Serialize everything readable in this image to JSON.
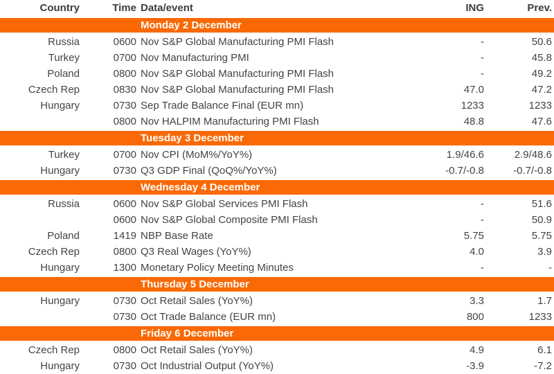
{
  "colors": {
    "accent_orange": "#FA6905",
    "banner_text": "#FFFFFF",
    "body_text": "#434343"
  },
  "table": {
    "columns": [
      "Country",
      "Time",
      "Data/event",
      "ING",
      "Prev."
    ],
    "sections": [
      {
        "day_header": "Monday 2 December",
        "rows": [
          {
            "country": "Russia",
            "time": "0600",
            "event": "Nov S&P Global Manufacturing PMI Flash",
            "ing": "-",
            "prev": "50.6"
          },
          {
            "country": "Turkey",
            "time": "0700",
            "event": "Nov Manufacturing PMI",
            "ing": "-",
            "prev": "45.8"
          },
          {
            "country": "Poland",
            "time": "0800",
            "event": "Nov S&P Global Manufacturing PMI Flash",
            "ing": "-",
            "prev": "49.2"
          },
          {
            "country": "Czech Rep",
            "time": "0830",
            "event": "Nov S&P Global Manufacturing PMI Flash",
            "ing": "47.0",
            "prev": "47.2"
          },
          {
            "country": "Hungary",
            "time": "0730",
            "event": "Sep Trade Balance Final (EUR mn)",
            "ing": "1233",
            "prev": "1233"
          },
          {
            "country": "",
            "time": "0800",
            "event": "Nov HALPIM Manufacturing PMI Flash",
            "ing": "48.8",
            "prev": "47.6"
          }
        ]
      },
      {
        "day_header": "Tuesday 3 December",
        "rows": [
          {
            "country": "Turkey",
            "time": "0700",
            "event": "Nov CPI (MoM%/YoY%)",
            "ing": "1.9/46.6",
            "prev": "2.9/48.6"
          },
          {
            "country": "Hungary",
            "time": "0730",
            "event": "Q3 GDP Final (QoQ%/YoY%)",
            "ing": "-0.7/-0.8",
            "prev": "-0.7/-0.8"
          }
        ]
      },
      {
        "day_header": "Wednesday 4 December",
        "rows": [
          {
            "country": "Russia",
            "time": "0600",
            "event": "Nov S&P Global Services PMI Flash",
            "ing": "-",
            "prev": "51.6"
          },
          {
            "country": "",
            "time": "0600",
            "event": "Nov S&P Global Composite PMI Flash",
            "ing": "-",
            "prev": "50.9"
          },
          {
            "country": "Poland",
            "time": "1419",
            "event": "NBP Base Rate",
            "ing": "5.75",
            "prev": "5.75"
          },
          {
            "country": "Czech Rep",
            "time": "0800",
            "event": "Q3 Real Wages (YoY%)",
            "ing": "4.0",
            "prev": "3.9"
          },
          {
            "country": "Hungary",
            "time": "1300",
            "event": "Monetary Policy Meeting Minutes",
            "ing": "-",
            "prev": "-"
          }
        ]
      },
      {
        "day_header": "Thursday 5 December",
        "rows": [
          {
            "country": "Hungary",
            "time": "0730",
            "event": "Oct Retail Sales (YoY%)",
            "ing": "3.3",
            "prev": "1.7"
          },
          {
            "country": "",
            "time": "0730",
            "event": "Oct Trade Balance (EUR mn)",
            "ing": "800",
            "prev": "1233"
          }
        ]
      },
      {
        "day_header": "Friday 6 December",
        "rows": [
          {
            "country": "Czech Rep",
            "time": "0800",
            "event": "Oct Retail Sales (YoY%)",
            "ing": "4.9",
            "prev": "6.1"
          },
          {
            "country": "Hungary",
            "time": "0730",
            "event": "Oct Industrial Output (YoY%)",
            "ing": "-3.9",
            "prev": "-7.2"
          }
        ]
      }
    ]
  }
}
